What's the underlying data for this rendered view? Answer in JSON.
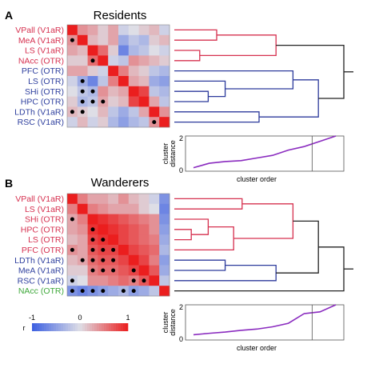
{
  "colors": {
    "red_label": "#d6304f",
    "blue_label": "#2e3f9e",
    "green_label": "#3ea83a",
    "red_branch": "#d6304f",
    "blue_branch": "#2c3a9c",
    "green_branch": "#5ac03a",
    "black_branch": "#222222",
    "purple_line": "#8a2bbf"
  },
  "colorbar": {
    "label": "r",
    "ticks": [
      "-1",
      "0",
      "1"
    ]
  },
  "chart_data": [
    {
      "id": "A",
      "type": "heatmap",
      "panel_letter": "A",
      "title": "Residents",
      "rows": [
        {
          "label": "VPall (V1aR)",
          "color": "red"
        },
        {
          "label": "MeA (V1aR)",
          "color": "red"
        },
        {
          "label": "LS (V1aR)",
          "color": "red"
        },
        {
          "label": "NAcc (OTR)",
          "color": "red"
        },
        {
          "label": "PFC (OTR)",
          "color": "blue"
        },
        {
          "label": "LS (OTR)",
          "color": "blue"
        },
        {
          "label": "SHi (OTR)",
          "color": "blue"
        },
        {
          "label": "HPC (OTR)",
          "color": "blue"
        },
        {
          "label": "LDTh (V1aR)",
          "color": "blue"
        },
        {
          "label": "RSC (V1aR)",
          "color": "blue"
        }
      ],
      "matrix": [
        [
          1.0,
          0.4,
          0.3,
          0.1,
          0.3,
          -0.1,
          0.0,
          0.1,
          0.2,
          -0.1
        ],
        [
          0.4,
          1.0,
          0.2,
          0.1,
          0.3,
          -0.4,
          -0.2,
          -0.3,
          0.1,
          0.2
        ],
        [
          0.3,
          0.2,
          1.0,
          0.6,
          0.1,
          -0.7,
          -0.3,
          -0.2,
          0.0,
          -0.1
        ],
        [
          0.1,
          0.1,
          0.6,
          1.0,
          -0.1,
          -0.2,
          0.4,
          0.3,
          0.2,
          0.1
        ],
        [
          0.3,
          0.3,
          0.1,
          -0.1,
          1.0,
          0.5,
          0.2,
          0.1,
          -0.2,
          -0.3
        ],
        [
          -0.1,
          -0.4,
          -0.7,
          -0.2,
          0.5,
          1.0,
          0.3,
          0.2,
          -0.4,
          -0.5
        ],
        [
          0.0,
          -0.2,
          -0.3,
          0.4,
          0.2,
          0.3,
          1.0,
          0.8,
          -0.2,
          -0.3
        ],
        [
          0.1,
          -0.3,
          -0.2,
          0.3,
          0.1,
          0.2,
          0.8,
          1.0,
          0.3,
          -0.2
        ],
        [
          0.2,
          0.1,
          0.0,
          0.2,
          -0.2,
          -0.4,
          -0.2,
          0.3,
          1.0,
          0.4
        ],
        [
          -0.1,
          0.2,
          -0.1,
          0.1,
          -0.3,
          -0.5,
          -0.3,
          -0.2,
          0.4,
          1.0
        ]
      ],
      "significant": [
        [
          1,
          0
        ],
        [
          3,
          2
        ],
        [
          5,
          1
        ],
        [
          6,
          1
        ],
        [
          6,
          2
        ],
        [
          7,
          1
        ],
        [
          7,
          2
        ],
        [
          7,
          3
        ],
        [
          8,
          0
        ],
        [
          8,
          1
        ],
        [
          9,
          8
        ]
      ],
      "dendrogram": {
        "leaves": 10,
        "links": [
          {
            "a": 2,
            "b": 3,
            "h": 0.15,
            "color": "red"
          },
          {
            "a": 0,
            "b": 1,
            "h": 0.25,
            "color": "red"
          },
          {
            "a": "c0",
            "b": "c1",
            "h": 0.6,
            "color": "red"
          },
          {
            "a": 6,
            "b": 7,
            "h": 0.2,
            "color": "blue"
          },
          {
            "a": 5,
            "b": "c3",
            "h": 0.3,
            "color": "blue"
          },
          {
            "a": 4,
            "b": "c4",
            "h": 0.7,
            "color": "blue"
          },
          {
            "a": 8,
            "b": 9,
            "h": 0.5,
            "color": "blue"
          },
          {
            "a": "c5",
            "b": "c6",
            "h": 0.85,
            "color": "blue"
          },
          {
            "a": "c2",
            "b": "c7",
            "h": 1.0,
            "color": "black"
          }
        ]
      },
      "inset": {
        "type": "line",
        "xlabel": "cluster order",
        "ylabel": "cluster distance",
        "ylim": [
          0,
          2
        ],
        "yticks": [
          "0",
          "2"
        ],
        "values": [
          0.2,
          0.45,
          0.55,
          0.6,
          0.75,
          0.9,
          1.2,
          1.4,
          1.7,
          2.0
        ],
        "cut_index": 7.5
      }
    },
    {
      "id": "B",
      "type": "heatmap",
      "panel_letter": "B",
      "title": "Wanderers",
      "rows": [
        {
          "label": "VPall (V1aR)",
          "color": "red"
        },
        {
          "label": "LS (V1aR)",
          "color": "red"
        },
        {
          "label": "SHi (OTR)",
          "color": "red"
        },
        {
          "label": "HPC (OTR)",
          "color": "red"
        },
        {
          "label": "LS (OTR)",
          "color": "red"
        },
        {
          "label": "PFC (OTR)",
          "color": "red"
        },
        {
          "label": "LDTh (V1aR)",
          "color": "blue"
        },
        {
          "label": "MeA (V1aR)",
          "color": "blue"
        },
        {
          "label": "RSC (V1aR)",
          "color": "blue"
        },
        {
          "label": "NAcc (OTR)",
          "color": "green"
        }
      ],
      "matrix": [
        [
          1.0,
          0.5,
          0.3,
          0.3,
          0.2,
          0.4,
          0.2,
          0.1,
          -0.1,
          -0.6
        ],
        [
          0.5,
          1.0,
          0.5,
          0.4,
          0.3,
          0.3,
          0.3,
          0.1,
          0.0,
          -0.7
        ],
        [
          0.3,
          0.5,
          1.0,
          0.9,
          0.8,
          0.7,
          0.6,
          0.5,
          0.4,
          -0.6
        ],
        [
          0.3,
          0.4,
          0.9,
          1.0,
          0.9,
          0.8,
          0.7,
          0.6,
          0.4,
          -0.5
        ],
        [
          0.2,
          0.3,
          0.8,
          0.9,
          1.0,
          0.8,
          0.7,
          0.6,
          0.5,
          -0.4
        ],
        [
          0.4,
          0.3,
          0.7,
          0.8,
          0.8,
          1.0,
          0.8,
          0.7,
          0.6,
          -0.3
        ],
        [
          0.2,
          0.3,
          0.6,
          0.7,
          0.7,
          0.8,
          1.0,
          0.8,
          0.5,
          -0.5
        ],
        [
          0.1,
          0.1,
          0.5,
          0.6,
          0.6,
          0.7,
          0.8,
          1.0,
          0.7,
          -0.4
        ],
        [
          -0.1,
          0.0,
          0.4,
          0.4,
          0.5,
          0.6,
          0.5,
          0.7,
          1.0,
          -0.2
        ],
        [
          -0.6,
          -0.7,
          -0.6,
          -0.5,
          -0.4,
          -0.3,
          -0.5,
          -0.4,
          -0.2,
          1.0
        ]
      ],
      "significant": [
        [
          2,
          0
        ],
        [
          3,
          2
        ],
        [
          4,
          2
        ],
        [
          4,
          3
        ],
        [
          5,
          0
        ],
        [
          5,
          2
        ],
        [
          5,
          3
        ],
        [
          5,
          4
        ],
        [
          6,
          1
        ],
        [
          6,
          2
        ],
        [
          6,
          3
        ],
        [
          6,
          4
        ],
        [
          7,
          2
        ],
        [
          7,
          3
        ],
        [
          7,
          4
        ],
        [
          7,
          6
        ],
        [
          8,
          0
        ],
        [
          8,
          6
        ],
        [
          8,
          7
        ],
        [
          9,
          0
        ],
        [
          9,
          1
        ],
        [
          9,
          2
        ],
        [
          9,
          3
        ],
        [
          9,
          5
        ],
        [
          9,
          6
        ]
      ],
      "dendrogram": {
        "leaves": 10,
        "links": [
          {
            "a": 3,
            "b": 4,
            "h": 0.1,
            "color": "red"
          },
          {
            "a": 2,
            "b": "c0",
            "h": 0.2,
            "color": "red"
          },
          {
            "a": "c1",
            "b": 5,
            "h": 0.35,
            "color": "red"
          },
          {
            "a": 0,
            "b": 1,
            "h": 0.4,
            "color": "red"
          },
          {
            "a": "c3",
            "b": "c2",
            "h": 0.7,
            "color": "red"
          },
          {
            "a": 6,
            "b": 7,
            "h": 0.3,
            "color": "blue"
          },
          {
            "a": "c5",
            "b": 8,
            "h": 0.6,
            "color": "blue"
          },
          {
            "a": "c4",
            "b": "c6",
            "h": 0.85,
            "color": "black"
          },
          {
            "a": "c7",
            "b": 9,
            "h": 1.0,
            "color": "black"
          }
        ]
      },
      "inset": {
        "type": "line",
        "xlabel": "cluster order",
        "ylabel": "cluster distance",
        "ylim": [
          0,
          2
        ],
        "yticks": [
          "0",
          "2"
        ],
        "values": [
          0.3,
          0.38,
          0.45,
          0.55,
          0.62,
          0.75,
          0.95,
          1.5,
          1.6,
          2.0
        ],
        "cut_index": 7.5
      }
    }
  ]
}
